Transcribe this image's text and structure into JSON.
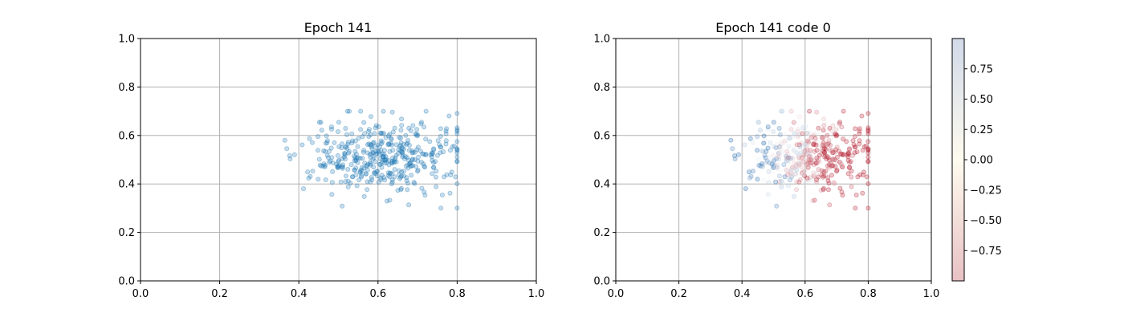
{
  "chart_data": [
    {
      "type": "scatter",
      "title": "Epoch 141",
      "xlabel": "",
      "ylabel": "",
      "xlim": [
        0.0,
        1.0
      ],
      "ylim": [
        0.0,
        1.0
      ],
      "xticks": [
        "0.0",
        "0.2",
        "0.4",
        "0.6",
        "0.8",
        "1.0"
      ],
      "yticks": [
        "0.0",
        "0.2",
        "0.4",
        "0.6",
        "0.8",
        "1.0"
      ],
      "grid": true,
      "point_color": "#1f77b4",
      "point_alpha": 0.25,
      "n_points": 420,
      "distribution": {
        "center_x": 0.615,
        "center_y": 0.515,
        "spread_x": 0.1,
        "spread_y": 0.075,
        "x_range": [
          0.32,
          0.8
        ],
        "y_range": [
          0.3,
          0.7
        ]
      }
    },
    {
      "type": "scatter",
      "title": "Epoch 141 code 0",
      "xlabel": "",
      "ylabel": "",
      "xlim": [
        0.0,
        1.0
      ],
      "ylim": [
        0.0,
        1.0
      ],
      "xticks": [
        "0.0",
        "0.2",
        "0.4",
        "0.6",
        "0.8",
        "1.0"
      ],
      "yticks": [
        "0.0",
        "0.2",
        "0.4",
        "0.6",
        "0.8",
        "1.0"
      ],
      "grid": true,
      "colormap": "RdBu",
      "point_alpha": 0.25,
      "same_points_as_first_chart": true,
      "colorbar": {
        "range": [
          -1.0,
          1.0
        ],
        "ticks": [
          "0.75",
          "0.50",
          "0.25",
          "0.00",
          "−0.25",
          "−0.50",
          "−0.75"
        ],
        "tick_values": [
          0.75,
          0.5,
          0.25,
          0.0,
          -0.25,
          -0.5,
          -0.75
        ],
        "low_color": "#e8c1c4",
        "mid_color": "#fefbef",
        "high_color": "#d2dae9"
      }
    }
  ]
}
